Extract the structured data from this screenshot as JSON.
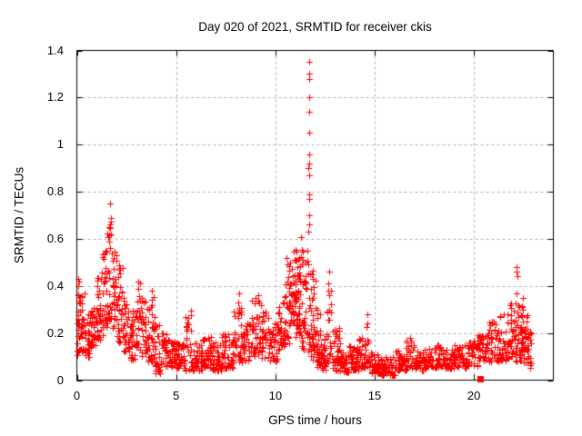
{
  "chart_data": {
    "type": "scatter",
    "title": "Day 020 of 2021, SRMTID for receiver ckis",
    "xlabel": "GPS time / hours",
    "ylabel": "SRMTID / TECUs",
    "xlim": [
      0,
      24
    ],
    "ylim": [
      0,
      1.4
    ],
    "xticks": {
      "values": [
        0,
        5,
        10,
        15,
        20
      ],
      "labels": [
        "0",
        "5",
        "10",
        "15",
        "20"
      ]
    },
    "yticks": {
      "values": [
        0,
        0.2,
        0.4,
        0.6,
        0.8,
        1,
        1.2,
        1.4
      ],
      "labels": [
        "0",
        "0.2",
        "0.4",
        "0.6",
        "0.8",
        "1",
        "1.2",
        "1.4"
      ]
    },
    "grid": true,
    "legend": "none",
    "marker": {
      "shape": "plus",
      "color": "#ff0000",
      "size": 7
    },
    "frame_color": "#000000",
    "grid_color": "#adadad",
    "background": "#ffffff",
    "seed": 11,
    "y_skew": 1.35,
    "density_bins": [
      [
        0.0,
        0.15,
        0.1,
        0.43,
        22
      ],
      [
        0.15,
        0.4,
        0.12,
        0.38,
        28
      ],
      [
        0.4,
        0.7,
        0.1,
        0.28,
        28
      ],
      [
        0.7,
        1.0,
        0.14,
        0.34,
        28
      ],
      [
        1.0,
        1.3,
        0.17,
        0.46,
        32
      ],
      [
        1.3,
        1.55,
        0.22,
        0.56,
        28
      ],
      [
        1.55,
        1.8,
        0.26,
        0.7,
        26
      ],
      [
        1.8,
        2.05,
        0.22,
        0.56,
        28
      ],
      [
        2.05,
        2.35,
        0.16,
        0.5,
        32
      ],
      [
        2.35,
        2.65,
        0.12,
        0.36,
        28
      ],
      [
        2.65,
        2.95,
        0.08,
        0.3,
        28
      ],
      [
        2.95,
        3.25,
        0.13,
        0.42,
        28
      ],
      [
        3.25,
        3.55,
        0.1,
        0.35,
        28
      ],
      [
        3.55,
        3.9,
        0.08,
        0.36,
        30
      ],
      [
        3.9,
        4.2,
        0.03,
        0.24,
        28
      ],
      [
        4.2,
        4.6,
        0.06,
        0.2,
        32
      ],
      [
        4.6,
        5.0,
        0.05,
        0.18,
        32
      ],
      [
        5.0,
        5.45,
        0.05,
        0.16,
        36
      ],
      [
        5.45,
        5.8,
        0.04,
        0.31,
        26
      ],
      [
        5.8,
        6.3,
        0.04,
        0.16,
        38
      ],
      [
        6.3,
        6.8,
        0.05,
        0.19,
        36
      ],
      [
        6.8,
        7.3,
        0.04,
        0.16,
        38
      ],
      [
        7.3,
        7.9,
        0.05,
        0.2,
        44
      ],
      [
        7.9,
        8.3,
        0.07,
        0.31,
        32
      ],
      [
        8.3,
        8.8,
        0.08,
        0.26,
        36
      ],
      [
        8.8,
        9.3,
        0.1,
        0.35,
        36
      ],
      [
        9.3,
        9.7,
        0.09,
        0.3,
        30
      ],
      [
        9.7,
        10.1,
        0.08,
        0.26,
        30
      ],
      [
        10.1,
        10.45,
        0.12,
        0.37,
        30
      ],
      [
        10.45,
        10.75,
        0.15,
        0.5,
        32
      ],
      [
        10.75,
        11.05,
        0.18,
        0.56,
        36
      ],
      [
        11.05,
        11.3,
        0.2,
        0.62,
        40
      ],
      [
        11.3,
        11.55,
        0.12,
        0.56,
        32
      ],
      [
        11.55,
        11.8,
        0.1,
        0.62,
        26
      ],
      [
        11.8,
        12.05,
        0.08,
        0.48,
        28
      ],
      [
        12.05,
        12.3,
        0.05,
        0.3,
        30
      ],
      [
        12.3,
        12.6,
        0.04,
        0.2,
        28
      ],
      [
        12.6,
        12.8,
        0.08,
        0.4,
        18
      ],
      [
        12.8,
        13.25,
        0.04,
        0.22,
        32
      ],
      [
        13.25,
        13.7,
        0.03,
        0.12,
        40
      ],
      [
        13.7,
        14.2,
        0.04,
        0.15,
        42
      ],
      [
        14.2,
        14.55,
        0.05,
        0.18,
        28
      ],
      [
        14.55,
        14.75,
        0.05,
        0.24,
        14
      ],
      [
        14.75,
        15.2,
        0.03,
        0.12,
        34
      ],
      [
        15.2,
        16.0,
        0.02,
        0.1,
        56
      ],
      [
        16.0,
        16.6,
        0.04,
        0.13,
        42
      ],
      [
        16.6,
        17.0,
        0.05,
        0.17,
        30
      ],
      [
        17.0,
        17.6,
        0.04,
        0.13,
        42
      ],
      [
        17.6,
        18.3,
        0.05,
        0.15,
        48
      ],
      [
        18.3,
        19.0,
        0.05,
        0.13,
        48
      ],
      [
        19.0,
        19.6,
        0.05,
        0.15,
        42
      ],
      [
        19.6,
        20.2,
        0.06,
        0.17,
        42
      ],
      [
        20.2,
        20.7,
        0.08,
        0.2,
        38
      ],
      [
        20.7,
        21.3,
        0.08,
        0.26,
        42
      ],
      [
        21.3,
        21.8,
        0.08,
        0.28,
        38
      ],
      [
        21.8,
        22.1,
        0.1,
        0.33,
        28
      ],
      [
        22.1,
        22.45,
        0.08,
        0.35,
        42
      ],
      [
        22.45,
        22.7,
        0.07,
        0.28,
        28
      ],
      [
        22.7,
        22.9,
        0.05,
        0.22,
        14
      ]
    ],
    "spike_points": [
      [
        11.7,
        1.35
      ],
      [
        11.72,
        1.3
      ],
      [
        11.69,
        1.28
      ],
      [
        11.71,
        1.2
      ],
      [
        11.7,
        1.14
      ],
      [
        11.72,
        1.05
      ],
      [
        11.69,
        0.96
      ],
      [
        11.71,
        0.92
      ],
      [
        11.67,
        0.9
      ],
      [
        11.7,
        0.87
      ],
      [
        11.72,
        0.79
      ],
      [
        11.68,
        0.77
      ],
      [
        11.7,
        0.7
      ],
      [
        11.71,
        0.66
      ],
      [
        11.66,
        0.63
      ],
      [
        1.68,
        0.75
      ],
      [
        1.7,
        0.69
      ],
      [
        1.66,
        0.66
      ],
      [
        1.72,
        0.62
      ],
      [
        3.8,
        0.38
      ],
      [
        3.78,
        0.34
      ],
      [
        8.18,
        0.37
      ],
      [
        8.15,
        0.33
      ],
      [
        9.15,
        0.36
      ],
      [
        9.2,
        0.33
      ],
      [
        10.55,
        0.52
      ],
      [
        10.6,
        0.49
      ],
      [
        12.7,
        0.46
      ],
      [
        12.68,
        0.41
      ],
      [
        12.72,
        0.36
      ],
      [
        12.69,
        0.3
      ],
      [
        13.2,
        0.22
      ],
      [
        13.18,
        0.18
      ],
      [
        14.65,
        0.28
      ],
      [
        14.63,
        0.24
      ],
      [
        16.8,
        0.18
      ],
      [
        22.15,
        0.48
      ],
      [
        22.13,
        0.46
      ],
      [
        22.17,
        0.44
      ],
      [
        22.15,
        0.37
      ],
      [
        0.05,
        0.43
      ],
      [
        0.07,
        0.4
      ]
    ],
    "special_points": [
      {
        "x": 20.32,
        "y": 0.005,
        "shape": "filled-square",
        "color": "#ff0000",
        "size": 7
      }
    ]
  }
}
